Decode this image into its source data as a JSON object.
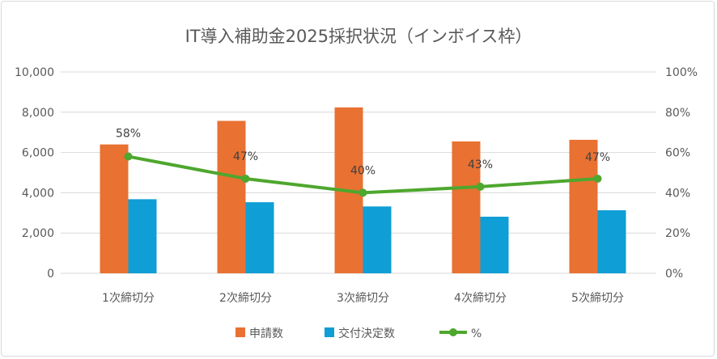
{
  "chart_data": {
    "type": "bar",
    "title": "IT導入補助金2025採択状況（インボイス枠）",
    "categories": [
      "1次締切分",
      "2次締切分",
      "3次締切分",
      "4次締切分",
      "5次締切分"
    ],
    "series": [
      {
        "name": "申請数",
        "type": "bar",
        "axis": "left",
        "color": "#E97132",
        "values": [
          6400,
          7570,
          8240,
          6550,
          6630
        ]
      },
      {
        "name": "交付決定数",
        "type": "bar",
        "axis": "left",
        "color": "#0F9ED5",
        "values": [
          3680,
          3530,
          3320,
          2810,
          3130
        ]
      },
      {
        "name": "%",
        "type": "line",
        "axis": "right",
        "color": "#4EA72E",
        "values": [
          58,
          47,
          40,
          43,
          47
        ],
        "labels": [
          "58%",
          "47%",
          "40%",
          "43%",
          "47%"
        ]
      }
    ],
    "ylim": [
      0,
      10000
    ],
    "y_ticks": [
      "0",
      "2,000",
      "4,000",
      "6,000",
      "8,000",
      "10,000"
    ],
    "y2lim": [
      0,
      100
    ],
    "y2_ticks": [
      "0%",
      "20%",
      "40%",
      "60%",
      "80%",
      "100%"
    ],
    "grid": true,
    "legend": "bottom"
  }
}
